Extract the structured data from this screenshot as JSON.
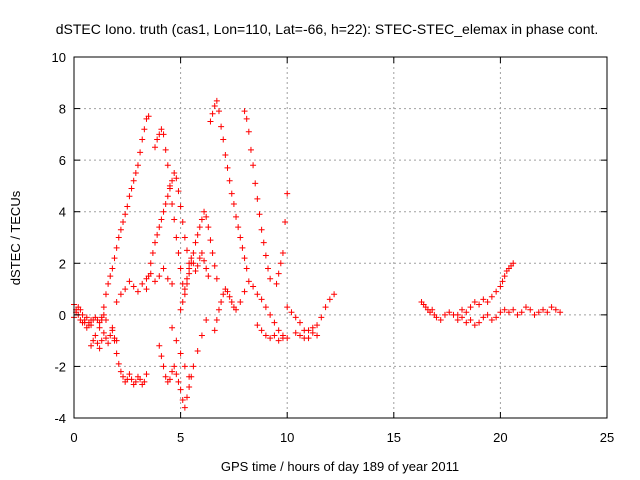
{
  "chart_data": {
    "type": "scatter",
    "title": "dSTEC Iono. truth (cas1, Lon=110, Lat=-66, h=22): STEC-STEC_elemax in phase cont.",
    "xlabel": "GPS time / hours of day 189 of year 2011",
    "ylabel": "dSTEC  / TECUs",
    "xlim": [
      0,
      25
    ],
    "ylim": [
      -4,
      10
    ],
    "xticks": [
      0,
      5,
      10,
      15,
      20,
      25
    ],
    "yticks": [
      -4,
      -2,
      0,
      2,
      4,
      6,
      8,
      10
    ],
    "grid": true,
    "marker": "+",
    "color": "#ff0000",
    "series": [
      {
        "x": [
          0.0,
          0.1,
          0.2,
          0.3,
          0.4,
          0.5,
          0.6,
          0.7,
          0.8,
          0.9,
          1.0,
          1.1,
          1.2,
          1.3,
          1.4,
          1.5
        ],
        "y": [
          0.4,
          0.2,
          0.0,
          -0.2,
          -0.3,
          -0.2,
          -0.1,
          -0.3,
          -0.4,
          -0.2,
          -0.1,
          -0.2,
          -0.3,
          -0.1,
          0.0,
          -0.2
        ]
      },
      {
        "x": [
          0.0,
          0.1,
          0.2,
          0.3,
          0.4,
          0.5,
          0.6,
          0.7,
          0.8
        ],
        "y": [
          -0.1,
          0.1,
          0.3,
          0.2,
          0.0,
          -0.3,
          -0.5,
          -0.4,
          -0.2
        ]
      },
      {
        "x": [
          0.8,
          0.9,
          1.0,
          1.1,
          1.2,
          1.3,
          1.4,
          1.5,
          1.6,
          1.7,
          1.8,
          1.9,
          2.0
        ],
        "y": [
          -1.2,
          -1.0,
          -0.8,
          -1.1,
          -1.3,
          -1.0,
          -0.7,
          -0.9,
          -1.1,
          -0.8,
          -0.6,
          -0.9,
          -1.0
        ]
      },
      {
        "x": [
          1.2,
          1.3,
          1.4,
          1.5,
          1.6,
          1.7,
          1.8,
          1.9,
          2.0,
          2.1,
          2.2,
          2.3,
          2.4,
          2.5,
          2.6,
          2.7,
          2.8,
          2.9,
          3.0,
          3.1,
          3.2,
          3.3,
          3.4,
          3.5
        ],
        "y": [
          -0.5,
          -0.2,
          0.3,
          0.8,
          1.2,
          1.5,
          1.8,
          2.2,
          2.6,
          3.0,
          3.3,
          3.6,
          3.9,
          4.2,
          4.6,
          4.9,
          5.2,
          5.5,
          5.8,
          6.3,
          6.8,
          7.2,
          7.6,
          7.7
        ]
      },
      {
        "x": [
          1.8,
          1.9,
          2.0,
          2.1,
          2.2,
          2.3,
          2.4,
          2.5,
          2.6,
          2.7,
          2.8,
          2.9,
          3.0,
          3.1,
          3.2,
          3.3,
          3.4
        ],
        "y": [
          -0.5,
          -1.0,
          -1.5,
          -1.9,
          -2.2,
          -2.4,
          -2.6,
          -2.5,
          -2.3,
          -2.5,
          -2.7,
          -2.6,
          -2.4,
          -2.5,
          -2.7,
          -2.6,
          -2.3
        ]
      },
      {
        "x": [
          2.0,
          2.2,
          2.4,
          2.6,
          2.8,
          3.0,
          3.2,
          3.4,
          3.6,
          3.8,
          4.0,
          4.2,
          4.4,
          4.6
        ],
        "y": [
          0.5,
          0.8,
          1.0,
          1.3,
          1.1,
          0.9,
          1.2,
          1.4,
          1.6,
          1.3,
          1.5,
          1.8,
          1.4,
          1.2
        ]
      },
      {
        "x": [
          3.4,
          3.5,
          3.6,
          3.7,
          3.8,
          3.9,
          4.0,
          4.1,
          4.2,
          4.3,
          4.4,
          4.5,
          4.6,
          4.7,
          4.8,
          4.9,
          5.0,
          5.1,
          5.2,
          5.3,
          5.4
        ],
        "y": [
          1.0,
          1.5,
          2.0,
          2.4,
          2.8,
          3.1,
          3.4,
          3.7,
          4.0,
          4.3,
          4.6,
          4.9,
          5.2,
          5.5,
          5.3,
          4.8,
          4.2,
          3.6,
          3.0,
          2.5,
          2.0
        ]
      },
      {
        "x": [
          3.8,
          3.9,
          4.0,
          4.1,
          4.2,
          4.3,
          4.4,
          4.5,
          4.6,
          4.7,
          4.8,
          4.9,
          5.0,
          5.1
        ],
        "y": [
          6.5,
          6.8,
          7.0,
          7.2,
          7.0,
          6.4,
          5.8,
          5.0,
          4.3,
          3.7,
          3.0,
          2.4,
          1.8,
          1.2
        ]
      },
      {
        "x": [
          4.0,
          4.1,
          4.2,
          4.3,
          4.4,
          4.5,
          4.6,
          4.7,
          4.8,
          4.9,
          5.0,
          5.1,
          5.2,
          5.3,
          5.4,
          5.5
        ],
        "y": [
          -1.2,
          -1.6,
          -2.0,
          -2.4,
          -2.6,
          -2.5,
          -2.2,
          -2.0,
          -2.3,
          -2.6,
          -2.9,
          -3.3,
          -3.6,
          -3.2,
          -2.8,
          -2.4
        ]
      },
      {
        "x": [
          4.6,
          4.8,
          5.0,
          5.2,
          5.4,
          5.6,
          5.8,
          6.0,
          6.2
        ],
        "y": [
          -0.5,
          -1.0,
          -1.5,
          -2.0,
          -2.4,
          -2.0,
          -1.4,
          -0.8,
          -0.2
        ]
      },
      {
        "x": [
          5.0,
          5.1,
          5.2,
          5.3,
          5.4,
          5.5,
          5.6,
          5.7,
          5.8,
          5.9,
          6.0,
          6.1,
          6.2,
          6.3,
          6.4,
          6.5,
          6.6,
          6.7
        ],
        "y": [
          0.2,
          0.5,
          0.8,
          1.2,
          1.6,
          2.0,
          2.4,
          2.8,
          3.1,
          3.4,
          3.7,
          4.0,
          3.8,
          3.4,
          2.9,
          2.4,
          1.9,
          1.4
        ]
      },
      {
        "x": [
          5.2,
          5.3,
          5.4,
          5.5,
          5.6,
          5.7,
          5.8,
          5.9,
          6.0,
          6.1,
          6.2,
          6.3
        ],
        "y": [
          1.0,
          1.4,
          1.8,
          2.2,
          2.0,
          1.7,
          1.9,
          2.2,
          2.4,
          2.1,
          1.8,
          1.5
        ]
      },
      {
        "x": [
          6.4,
          6.5,
          6.6,
          6.7,
          6.8,
          6.9,
          7.0,
          7.1,
          7.2,
          7.3,
          7.4,
          7.5,
          7.6,
          7.7,
          7.8,
          7.9,
          8.0,
          8.1
        ],
        "y": [
          7.5,
          7.8,
          8.1,
          8.3,
          7.9,
          7.3,
          6.8,
          6.2,
          5.7,
          5.2,
          4.7,
          4.3,
          3.8,
          3.4,
          3.0,
          2.6,
          2.2,
          1.8
        ]
      },
      {
        "x": [
          6.6,
          6.7,
          6.8,
          6.9,
          7.0,
          7.1,
          7.2,
          7.3,
          7.4,
          7.5,
          7.6
        ],
        "y": [
          -0.6,
          -0.2,
          0.2,
          0.5,
          0.8,
          1.0,
          0.9,
          0.7,
          0.5,
          0.3,
          0.2
        ]
      },
      {
        "x": [
          8.0,
          8.1,
          8.2,
          8.3,
          8.4,
          8.5,
          8.6,
          8.7,
          8.8,
          8.9,
          9.0,
          9.1,
          9.2
        ],
        "y": [
          7.9,
          7.6,
          7.1,
          6.4,
          5.8,
          5.1,
          4.5,
          3.9,
          3.3,
          2.8,
          2.3,
          1.8,
          1.4
        ]
      },
      {
        "x": [
          7.8,
          8.0,
          8.2,
          8.4,
          8.6,
          8.8,
          9.0,
          9.2,
          9.4,
          9.6,
          9.8,
          10.0
        ],
        "y": [
          0.5,
          0.9,
          1.3,
          1.1,
          0.8,
          0.6,
          0.3,
          0.0,
          -0.3,
          -0.6,
          -0.8,
          -0.9
        ]
      },
      {
        "x": [
          8.6,
          8.8,
          9.0,
          9.2,
          9.4,
          9.6,
          9.8
        ],
        "y": [
          -0.4,
          -0.6,
          -0.8,
          -0.9,
          -0.8,
          -1.0,
          -0.9
        ]
      },
      {
        "x": [
          9.5,
          9.6,
          9.7,
          9.8,
          9.9,
          10.0
        ],
        "y": [
          1.2,
          1.6,
          2.0,
          2.4,
          3.6,
          4.7
        ]
      },
      {
        "x": [
          10.0,
          10.2,
          10.4,
          10.6,
          10.8,
          11.0,
          11.2,
          11.4,
          11.6,
          11.8,
          12.0,
          12.2
        ],
        "y": [
          0.3,
          0.1,
          -0.1,
          -0.3,
          -0.6,
          -0.9,
          -0.7,
          -0.4,
          -0.1,
          0.3,
          0.6,
          0.8
        ]
      },
      {
        "x": [
          10.4,
          10.6,
          10.8,
          11.0,
          11.2,
          11.4
        ],
        "y": [
          -0.7,
          -0.8,
          -0.9,
          -0.6,
          -0.5,
          -0.8
        ]
      },
      {
        "x": [
          16.3,
          16.4,
          16.5,
          16.6,
          16.7,
          16.8,
          16.9,
          17.0,
          17.2,
          17.4,
          17.6,
          17.8,
          18.0,
          18.2,
          18.4,
          18.6,
          18.8,
          19.0,
          19.2,
          19.4,
          19.6,
          19.8
        ],
        "y": [
          0.5,
          0.4,
          0.3,
          0.2,
          0.1,
          0.2,
          0.0,
          -0.1,
          -0.2,
          0.0,
          0.1,
          0.0,
          -0.2,
          -0.1,
          -0.3,
          -0.2,
          -0.4,
          -0.3,
          -0.1,
          0.0,
          -0.2,
          -0.1
        ]
      },
      {
        "x": [
          18.0,
          18.2,
          18.4,
          18.6,
          18.8,
          19.0,
          19.2,
          19.4,
          19.6,
          19.8,
          20.0,
          20.1,
          20.2,
          20.3,
          20.4,
          20.5,
          20.6
        ],
        "y": [
          0.0,
          0.2,
          0.1,
          0.3,
          0.5,
          0.4,
          0.6,
          0.5,
          0.7,
          0.9,
          1.1,
          1.3,
          1.5,
          1.7,
          1.8,
          1.9,
          2.0
        ]
      },
      {
        "x": [
          20.0,
          20.2,
          20.4,
          20.6,
          20.8,
          21.0,
          21.2,
          21.4,
          21.6,
          21.8,
          22.0,
          22.2,
          22.4,
          22.6,
          22.8
        ],
        "y": [
          0.1,
          0.2,
          0.1,
          0.2,
          0.0,
          0.1,
          0.3,
          0.2,
          0.0,
          0.1,
          0.2,
          0.1,
          0.3,
          0.2,
          0.1
        ]
      }
    ]
  }
}
